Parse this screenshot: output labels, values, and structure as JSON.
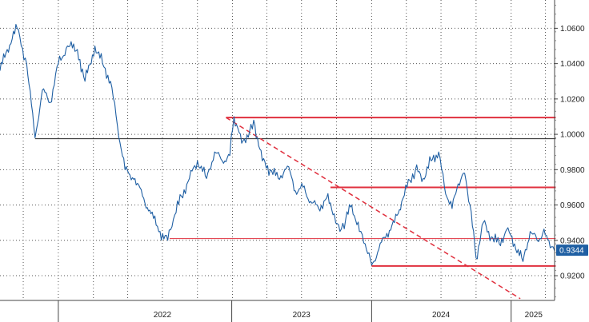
{
  "chart_data": {
    "type": "line",
    "title": "",
    "xlabel": "",
    "ylabel": "",
    "x_range": [
      "2021-05-01",
      "2025-04-25"
    ],
    "ylim": [
      0.906,
      1.076
    ],
    "y_ticks": [
      "0.9200",
      "0.9400",
      "0.9600",
      "0.9800",
      "1.0000",
      "1.0200",
      "1.0400",
      "1.0600"
    ],
    "x_year_labels": [
      {
        "label": "2022",
        "date": "2022-07-01"
      },
      {
        "label": "2023",
        "date": "2023-07-01"
      },
      {
        "label": "2024",
        "date": "2024-07-01"
      },
      {
        "label": "2025",
        "date": "2025-03-01"
      }
    ],
    "x_separators": [
      "2021-10-01",
      "2022-12-30",
      "2024-01-01",
      "2025-01-01"
    ],
    "grid": true,
    "legend": "none",
    "last_price": "0.9344",
    "series": [
      {
        "color": "#1f5fa3",
        "points": [
          [
            "2021-05-01",
            1.036
          ],
          [
            "2021-05-20",
            1.048
          ],
          [
            "2021-06-15",
            1.06
          ],
          [
            "2021-07-10",
            1.04
          ],
          [
            "2021-08-01",
            0.998
          ],
          [
            "2021-08-20",
            1.025
          ],
          [
            "2021-09-10",
            1.018
          ],
          [
            "2021-10-01",
            1.04
          ],
          [
            "2021-10-25",
            1.05
          ],
          [
            "2021-11-20",
            1.048
          ],
          [
            "2021-12-10",
            1.03
          ],
          [
            "2022-01-05",
            1.05
          ],
          [
            "2022-01-25",
            1.04
          ],
          [
            "2022-02-15",
            1.03
          ],
          [
            "2022-03-05",
            1.005
          ],
          [
            "2022-03-25",
            0.98
          ],
          [
            "2022-04-20",
            0.975
          ],
          [
            "2022-05-10",
            0.965
          ],
          [
            "2022-06-01",
            0.955
          ],
          [
            "2022-06-25",
            0.945
          ],
          [
            "2022-07-15",
            0.94
          ],
          [
            "2022-07-30",
            0.952
          ],
          [
            "2022-08-20",
            0.965
          ],
          [
            "2022-09-10",
            0.975
          ],
          [
            "2022-10-01",
            0.985
          ],
          [
            "2022-10-25",
            0.975
          ],
          [
            "2022-11-15",
            0.99
          ],
          [
            "2022-12-05",
            0.985
          ],
          [
            "2022-12-25",
            0.988
          ],
          [
            "2023-01-05",
            1.01
          ],
          [
            "2023-01-25",
            0.995
          ],
          [
            "2023-02-15",
            1.002
          ],
          [
            "2023-03-01",
            1.005
          ],
          [
            "2023-03-20",
            0.985
          ],
          [
            "2023-04-10",
            0.98
          ],
          [
            "2023-05-01",
            0.975
          ],
          [
            "2023-05-25",
            0.982
          ],
          [
            "2023-06-15",
            0.968
          ],
          [
            "2023-07-05",
            0.97
          ],
          [
            "2023-07-25",
            0.962
          ],
          [
            "2023-08-15",
            0.958
          ],
          [
            "2023-09-05",
            0.964
          ],
          [
            "2023-09-25",
            0.955
          ],
          [
            "2023-10-10",
            0.945
          ],
          [
            "2023-10-25",
            0.952
          ],
          [
            "2023-11-10",
            0.96
          ],
          [
            "2023-11-30",
            0.945
          ],
          [
            "2023-12-15",
            0.938
          ],
          [
            "2024-01-01",
            0.926
          ],
          [
            "2024-01-20",
            0.935
          ],
          [
            "2024-02-10",
            0.944
          ],
          [
            "2024-03-01",
            0.95
          ],
          [
            "2024-03-20",
            0.962
          ],
          [
            "2024-04-10",
            0.974
          ],
          [
            "2024-04-25",
            0.98
          ],
          [
            "2024-05-15",
            0.975
          ],
          [
            "2024-06-05",
            0.985
          ],
          [
            "2024-06-25",
            0.99
          ],
          [
            "2024-07-10",
            0.97
          ],
          [
            "2024-07-30",
            0.958
          ],
          [
            "2024-08-15",
            0.972
          ],
          [
            "2024-09-01",
            0.978
          ],
          [
            "2024-09-15",
            0.96
          ],
          [
            "2024-10-01",
            0.93
          ],
          [
            "2024-10-20",
            0.95
          ],
          [
            "2024-11-10",
            0.942
          ],
          [
            "2024-12-01",
            0.938
          ],
          [
            "2024-12-20",
            0.946
          ],
          [
            "2025-01-10",
            0.938
          ],
          [
            "2025-02-01",
            0.928
          ],
          [
            "2025-02-20",
            0.945
          ],
          [
            "2025-03-10",
            0.94
          ],
          [
            "2025-03-25",
            0.944
          ],
          [
            "2025-04-10",
            0.94
          ],
          [
            "2025-04-25",
            0.934
          ]
        ]
      }
    ],
    "reference_lines": [
      {
        "kind": "horizontal",
        "value": 1.0095,
        "color": "#e0303e",
        "weight": "thick",
        "from": "2022-12-15",
        "to": "2025-04-28"
      },
      {
        "kind": "horizontal",
        "value": 0.97,
        "color": "#e0303e",
        "weight": "thick",
        "from": "2023-09-15",
        "to": "2025-04-28"
      },
      {
        "kind": "horizontal",
        "value": 0.941,
        "color": "#e0303e",
        "weight": "thin",
        "from": "2022-07-20",
        "to": "2025-04-28"
      },
      {
        "kind": "horizontal",
        "value": 0.9255,
        "color": "#e0303e",
        "weight": "thick",
        "from": "2024-01-01",
        "to": "2025-04-28"
      },
      {
        "kind": "horizontal",
        "value": 0.9975,
        "color": "#222222",
        "weight": "thin",
        "from": "2021-08-01",
        "to": "2025-04-28"
      },
      {
        "kind": "trend",
        "color": "#e0303e",
        "dash": true,
        "from": [
          "2022-12-15",
          1.0095
        ],
        "to": [
          "2025-01-25",
          0.907
        ]
      }
    ]
  }
}
